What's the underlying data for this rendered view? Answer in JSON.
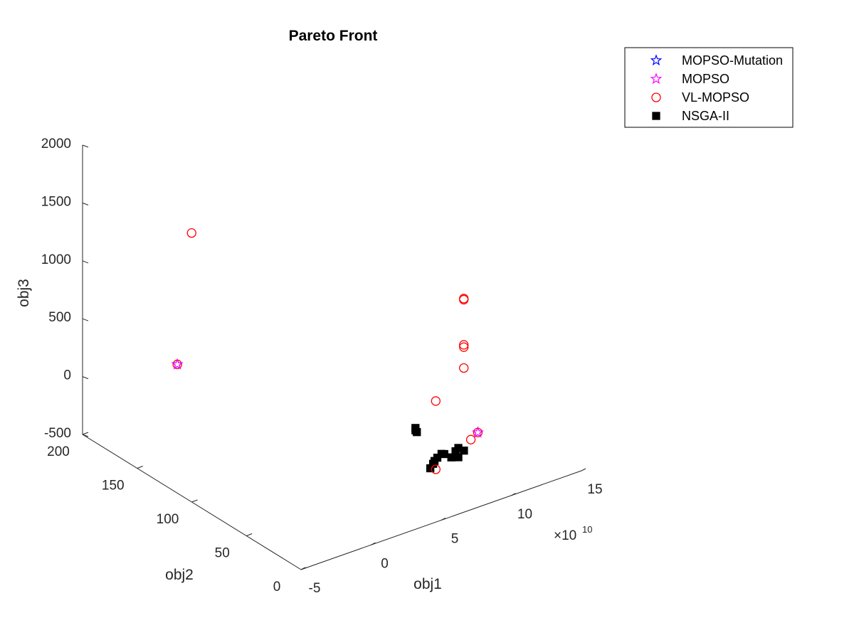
{
  "chart_data": {
    "type": "scatter",
    "projection": "3d",
    "title": "Pareto Front",
    "xlabel": "obj1",
    "ylabel": "obj2",
    "zlabel": "obj3",
    "x_exponent_label": "×10",
    "x_exponent": "10",
    "xlim": [
      -5,
      15
    ],
    "ylim": [
      0,
      200
    ],
    "zlim": [
      -500,
      2000
    ],
    "x_ticks": [
      "-5",
      "0",
      "5",
      "10",
      "15"
    ],
    "y_ticks": [
      "0",
      "50",
      "100",
      "150",
      "200"
    ],
    "z_ticks": [
      "-500",
      "0",
      "500",
      "1000",
      "1500",
      "2000"
    ],
    "grid": false,
    "legend_position": "top-right",
    "series": [
      {
        "name": "MOPSO-Mutation",
        "marker": "pentagram",
        "color": "#0000ff",
        "points": [
          [
            0.2,
            180,
            0
          ],
          [
            8.0,
            5,
            100
          ]
        ]
      },
      {
        "name": "MOPSO",
        "marker": "pentagram",
        "color": "#ff00ff",
        "points": [
          [
            0.2,
            180,
            0
          ],
          [
            8.0,
            5,
            100
          ]
        ]
      },
      {
        "name": "VL-MOPSO",
        "marker": "circle",
        "color": "#ff0000",
        "points": [
          [
            0.2,
            180,
            0
          ],
          [
            2.0,
            190,
            1000
          ],
          [
            7.0,
            5,
            1300
          ],
          [
            7.0,
            5,
            1290
          ],
          [
            7.0,
            5,
            900
          ],
          [
            7.0,
            5,
            880
          ],
          [
            7.0,
            5,
            700
          ],
          [
            5.0,
            5,
            500
          ],
          [
            8.0,
            5,
            100
          ],
          [
            7.5,
            5,
            60
          ],
          [
            5.0,
            5,
            -90
          ]
        ]
      },
      {
        "name": "NSGA-II",
        "marker": "square",
        "color": "#000000",
        "points": [
          [
            5.5,
            30,
            100
          ],
          [
            5.5,
            30,
            80
          ],
          [
            5.6,
            30,
            60
          ],
          [
            5.8,
            10,
            -20
          ],
          [
            5.5,
            10,
            -40
          ],
          [
            5.3,
            10,
            -60
          ],
          [
            6.0,
            10,
            -30
          ],
          [
            7.0,
            10,
            -20
          ],
          [
            7.4,
            10,
            -60
          ],
          [
            7.0,
            10,
            -100
          ],
          [
            6.5,
            10,
            -80
          ],
          [
            5.0,
            10,
            -110
          ],
          [
            5.2,
            10,
            -80
          ],
          [
            6.8,
            10,
            -40
          ]
        ]
      }
    ]
  }
}
